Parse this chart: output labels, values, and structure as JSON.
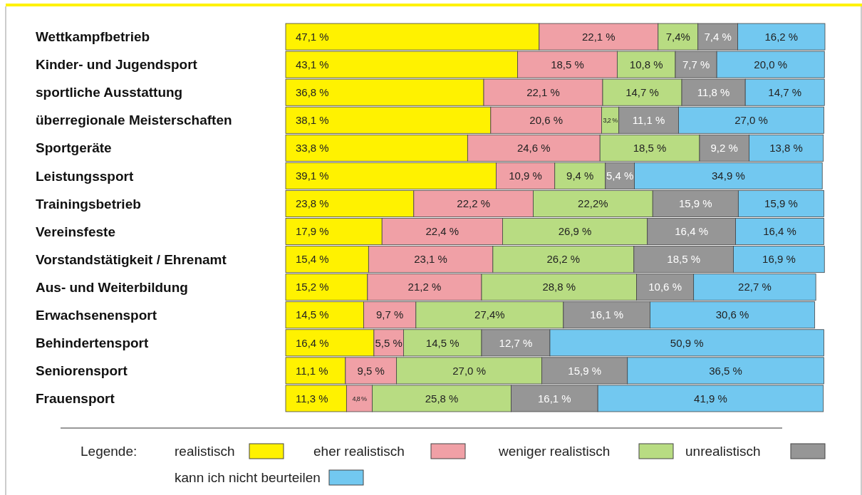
{
  "chart_data": {
    "type": "bar",
    "orientation": "horizontal",
    "stacked": true,
    "legend": "bottom",
    "legend_title": "Legende:",
    "categories": [
      "Wettkampfbetrieb",
      "Kinder- und Jugendsport",
      "sportliche Ausstattung",
      "überregionale Meisterschaften",
      "Sportgeräte",
      "Leistungssport",
      "Trainingsbetrieb",
      "Vereinsfeste",
      "Vorstandstätigkeit / Ehrenamt",
      "Aus- und Weiterbildung",
      "Erwachsenensport",
      "Behindertensport",
      "Seniorensport",
      "Frauensport"
    ],
    "series": [
      {
        "name": "realistisch",
        "color": "#fff200",
        "values": [
          47.1,
          43.1,
          36.8,
          38.1,
          33.8,
          39.1,
          23.8,
          17.9,
          15.4,
          15.2,
          14.5,
          16.4,
          11.1,
          11.3
        ],
        "value_labels": [
          "47,1 %",
          "43,1 %",
          "36,8 %",
          "38,1 %",
          "33,8 %",
          "39,1 %",
          "23,8 %",
          "17,9 %",
          "15,4 %",
          "15,2 %",
          "14,5 %",
          "16,4 %",
          "11,1 %",
          "11,3 %"
        ]
      },
      {
        "name": "eher realistisch",
        "color": "#f0a0a6",
        "values": [
          22.1,
          18.5,
          22.1,
          20.6,
          24.6,
          10.9,
          22.2,
          22.4,
          23.1,
          21.2,
          9.7,
          5.5,
          9.5,
          4.8
        ],
        "value_labels": [
          "22,1 %",
          "18,5 %",
          "22,1 %",
          "20,6 %",
          "24,6 %",
          "10,9 %",
          "22,2 %",
          "22,4 %",
          "23,1 %",
          "21,2 %",
          "9,7 %",
          "5,5 %",
          "9,5 %",
          "4,8 %"
        ]
      },
      {
        "name": "weniger realistisch",
        "color": "#b8dc82",
        "values": [
          7.4,
          10.8,
          14.7,
          3.2,
          18.5,
          9.4,
          22.2,
          26.9,
          26.2,
          28.8,
          27.4,
          14.5,
          27.0,
          25.8
        ],
        "value_labels": [
          "7,4%",
          "10,8 %",
          "14,7 %",
          "3,2 %",
          "18,5 %",
          "9,4 %",
          "22,2%",
          "26,9 %",
          "26,2 %",
          "28,8 %",
          "27,4%",
          "14,5 %",
          "27,0 %",
          "25,8 %"
        ]
      },
      {
        "name": "unrealistisch",
        "color": "#969696",
        "values": [
          7.4,
          7.7,
          11.8,
          11.1,
          9.2,
          5.4,
          15.9,
          16.4,
          18.5,
          10.6,
          16.1,
          12.7,
          15.9,
          16.1
        ],
        "value_labels": [
          "7,4 %",
          "7,7 %",
          "11,8 %",
          "11,1 %",
          "9,2 %",
          "5,4 %",
          "15,9 %",
          "16,4 %",
          "18,5 %",
          "10,6 %",
          "16,1 %",
          "12,7 %",
          "15,9 %",
          "16,1 %"
        ]
      },
      {
        "name": "kann ich nicht beurteilen",
        "color": "#72c8f0",
        "values": [
          16.2,
          20.0,
          14.7,
          27.0,
          13.8,
          34.9,
          15.9,
          16.4,
          16.9,
          22.7,
          30.6,
          50.9,
          36.5,
          41.9
        ],
        "value_labels": [
          "16,2 %",
          "20,0 %",
          "14,7 %",
          "27,0 %",
          "13,8 %",
          "34,9 %",
          "15,9 %",
          "16,4 %",
          "16,9 %",
          "22,7 %",
          "30,6 %",
          "50,9 %",
          "36,5 %",
          "41,9 %"
        ]
      }
    ]
  }
}
